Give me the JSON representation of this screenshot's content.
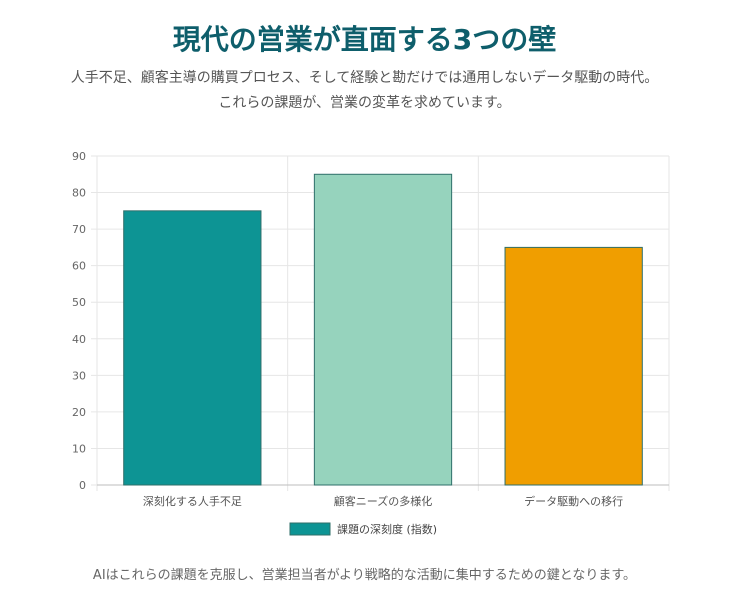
{
  "header": {
    "title": "現代の営業が直面する3つの壁",
    "subtitle_lines": [
      "人手不足、顧客主導の購買プロセス、そして経験と勘だけでは通用しないデータ駆動の時代。",
      "これらの課題が、営業の変革を求めています。"
    ]
  },
  "footer": {
    "text": "AIはこれらの課題を克服し、営業担当者がより戦略的な活動に集中するための鍵となります。"
  },
  "chart_data": {
    "type": "bar",
    "categories": [
      "深刻化する人手不足",
      "顧客ニーズの多様化",
      "データ駆動への移行"
    ],
    "series": [
      {
        "name": "課題の深刻度 (指数)",
        "values": [
          75,
          85,
          65
        ]
      }
    ],
    "bar_colors": [
      "#0d9494",
      "#96d3bd",
      "#f09e00"
    ],
    "ylim": [
      0,
      90
    ],
    "yticks": [
      0,
      10,
      20,
      30,
      40,
      50,
      60,
      70,
      80,
      90
    ],
    "grid": true,
    "legend_position": "bottom"
  }
}
